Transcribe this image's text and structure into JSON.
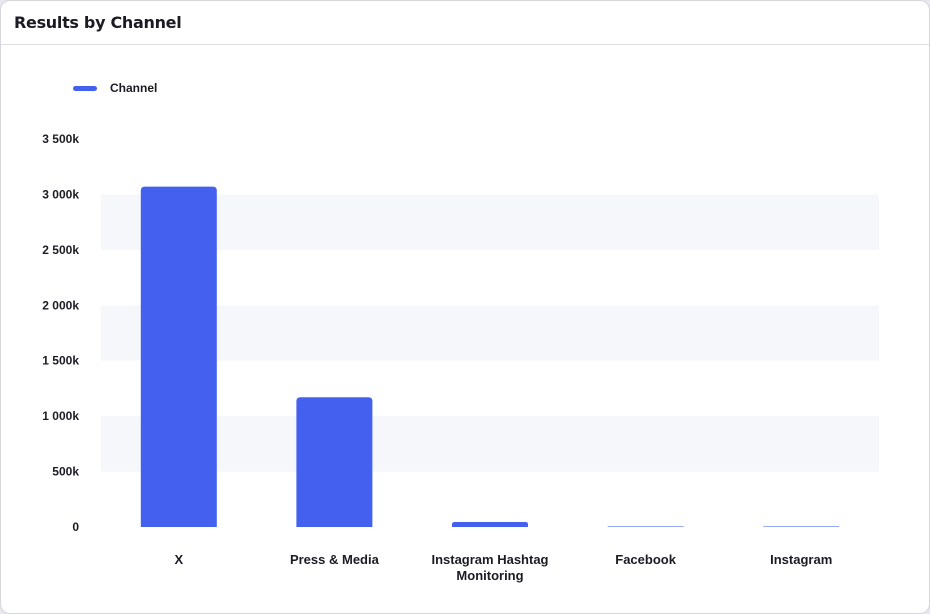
{
  "card": {
    "title": "Results by Channel"
  },
  "colors": {
    "bar": "#4361ee",
    "band": "#f6f7fb",
    "text": "#1b1b24"
  },
  "chart_data": {
    "type": "bar",
    "categories": [
      "X",
      "Press & Media",
      "Instagram Hashtag Monitoring",
      "Facebook",
      "Instagram"
    ],
    "category_lines": [
      [
        "X"
      ],
      [
        "Press & Media"
      ],
      [
        "Instagram Hashtag",
        "Monitoring"
      ],
      [
        "Facebook"
      ],
      [
        "Instagram"
      ]
    ],
    "series": [
      {
        "name": "Channel",
        "values": [
          3070000,
          1170000,
          45000,
          3000,
          2000
        ]
      }
    ],
    "yticks": [
      0,
      500000,
      1000000,
      1500000,
      2000000,
      2500000,
      3000000,
      3500000
    ],
    "ytick_labels": [
      "0",
      "500k",
      "1 000k",
      "1 500k",
      "2 000k",
      "2 500k",
      "3 000k",
      "3 500k"
    ],
    "ylim": [
      0,
      3500000
    ],
    "title": "",
    "xlabel": "",
    "ylabel": "",
    "legend": "top-left",
    "grid": "alternating horizontal bands"
  }
}
